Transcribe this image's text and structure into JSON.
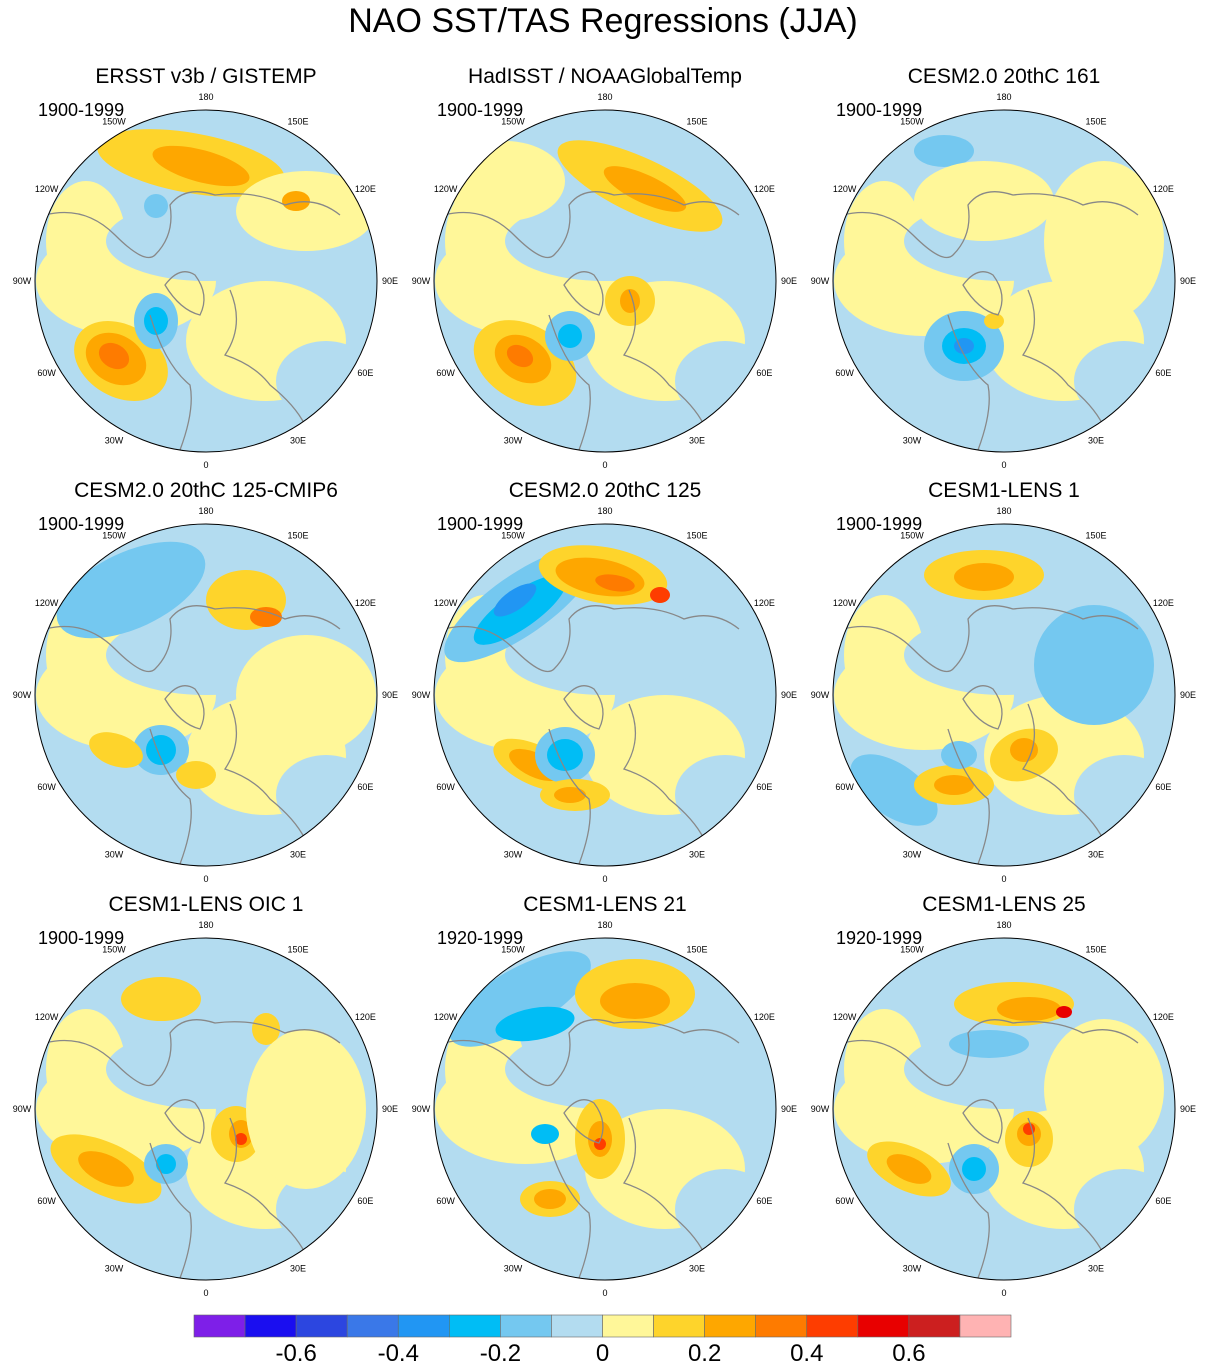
{
  "title": "NAO SST/TAS Regressions (JJA)",
  "lon_labels": [
    "180",
    "150E",
    "120E",
    "90E",
    "60E",
    "30E",
    "0",
    "30W",
    "60W",
    "90W",
    "120W",
    "150W"
  ],
  "panels": [
    {
      "title": "ERSST v3b / GISTEMP",
      "period": "1900-1999"
    },
    {
      "title": "HadISST / NOAAGlobalTemp",
      "period": "1900-1999"
    },
    {
      "title": "CESM2.0 20thC 161",
      "period": "1900-1999"
    },
    {
      "title": "CESM2.0 20thC 125-CMIP6",
      "period": "1900-1999"
    },
    {
      "title": "CESM2.0 20thC 125",
      "period": "1900-1999"
    },
    {
      "title": "CESM1-LENS 1",
      "period": "1900-1999"
    },
    {
      "title": "CESM1-LENS OIC 1",
      "period": "1900-1999"
    },
    {
      "title": "CESM1-LENS 21",
      "period": "1920-1999"
    },
    {
      "title": "CESM1-LENS 25",
      "period": "1920-1999"
    }
  ],
  "chart_data": {
    "type": "heatmap",
    "projection": "north polar stereographic",
    "variable": "NAO regression of SST/TAS",
    "season": "JJA",
    "colorbar": {
      "colors": [
        "#7e1fe8",
        "#1a0ef0",
        "#2c46e0",
        "#3a78e8",
        "#2196f3",
        "#00bdf5",
        "#74c8f0",
        "#b3dcf0",
        "#fff799",
        "#fed42b",
        "#fea700",
        "#fe7b00",
        "#fe3d00",
        "#e80000",
        "#cc1f1f",
        "#ffb3b3"
      ],
      "levels": [
        -0.7,
        -0.6,
        -0.5,
        -0.4,
        -0.3,
        -0.2,
        -0.1,
        0,
        0.1,
        0.2,
        0.3,
        0.4,
        0.5,
        0.6,
        0.7
      ],
      "tick_labels": [
        "-0.6",
        "-0.4",
        "-0.2",
        "0",
        "0.2",
        "0.4",
        "0.6"
      ],
      "tick_values": [
        -0.6,
        -0.4,
        -0.2,
        0,
        0.2,
        0.4,
        0.6
      ]
    }
  }
}
